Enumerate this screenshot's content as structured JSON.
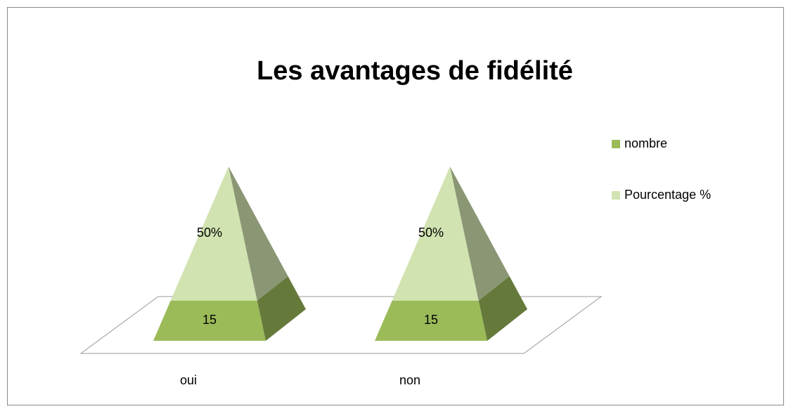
{
  "chart_data": {
    "type": "pyramid",
    "title": "Les avantages de fidélité",
    "categories": [
      "oui",
      "non"
    ],
    "series": [
      {
        "name": "nombre",
        "color": "#9bbb59",
        "values": [
          15,
          15
        ]
      },
      {
        "name": "Pourcentage %",
        "color": "#d1e3b0",
        "values": [
          50,
          50
        ],
        "value_labels": [
          "50%",
          "50%"
        ]
      }
    ],
    "stacked": true,
    "legend": "right"
  }
}
